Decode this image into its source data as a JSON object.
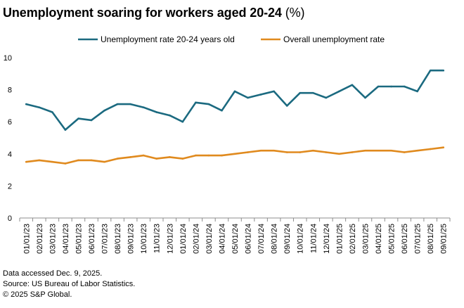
{
  "title": "Unemployment soaring for workers aged 20-24",
  "title_unit": "(%)",
  "chart_data": {
    "type": "line",
    "title": "Unemployment soaring for workers aged 20-24 (%)",
    "xlabel": "",
    "ylabel": "",
    "ylim": [
      0,
      10
    ],
    "yticks": [
      0,
      2,
      4,
      6,
      8,
      10
    ],
    "grid": false,
    "legend_position": "top-center",
    "categories": [
      "01/01/23",
      "02/01/23",
      "03/01/23",
      "04/01/23",
      "05/01/23",
      "06/01/23",
      "07/01/23",
      "08/01/23",
      "09/01/23",
      "10/01/23",
      "11/01/23",
      "12/01/23",
      "01/01/24",
      "02/01/24",
      "03/01/24",
      "04/01/24",
      "05/01/24",
      "06/01/24",
      "07/01/24",
      "08/01/24",
      "09/01/24",
      "10/01/24",
      "11/01/24",
      "12/01/24",
      "01/01/25",
      "02/01/25",
      "03/01/25",
      "04/01/25",
      "05/01/25",
      "06/01/25",
      "07/01/25",
      "08/01/25",
      "09/01/25"
    ],
    "series": [
      {
        "name": "Unemployment rate 20-24 years old",
        "color": "#1b6a80",
        "values": [
          7.1,
          6.9,
          6.6,
          5.5,
          6.2,
          6.1,
          6.7,
          7.1,
          7.1,
          6.9,
          6.6,
          6.4,
          6.0,
          7.2,
          7.1,
          6.7,
          7.9,
          7.5,
          7.7,
          7.9,
          7.0,
          7.8,
          7.8,
          7.5,
          7.9,
          8.3,
          7.5,
          8.2,
          8.2,
          8.2,
          7.9,
          9.2,
          9.2
        ]
      },
      {
        "name": "Overall unemployment rate",
        "color": "#e08a1e",
        "values": [
          3.5,
          3.6,
          3.5,
          3.4,
          3.6,
          3.6,
          3.5,
          3.7,
          3.8,
          3.9,
          3.7,
          3.8,
          3.7,
          3.9,
          3.9,
          3.9,
          4.0,
          4.1,
          4.2,
          4.2,
          4.1,
          4.1,
          4.2,
          4.1,
          4.0,
          4.1,
          4.2,
          4.2,
          4.2,
          4.1,
          4.2,
          4.3,
          4.4
        ]
      }
    ]
  },
  "notes": [
    "Data accessed Dec. 9, 2025.",
    "Source: US Bureau of Labor Statistics.",
    "© 2025 S&P Global."
  ]
}
